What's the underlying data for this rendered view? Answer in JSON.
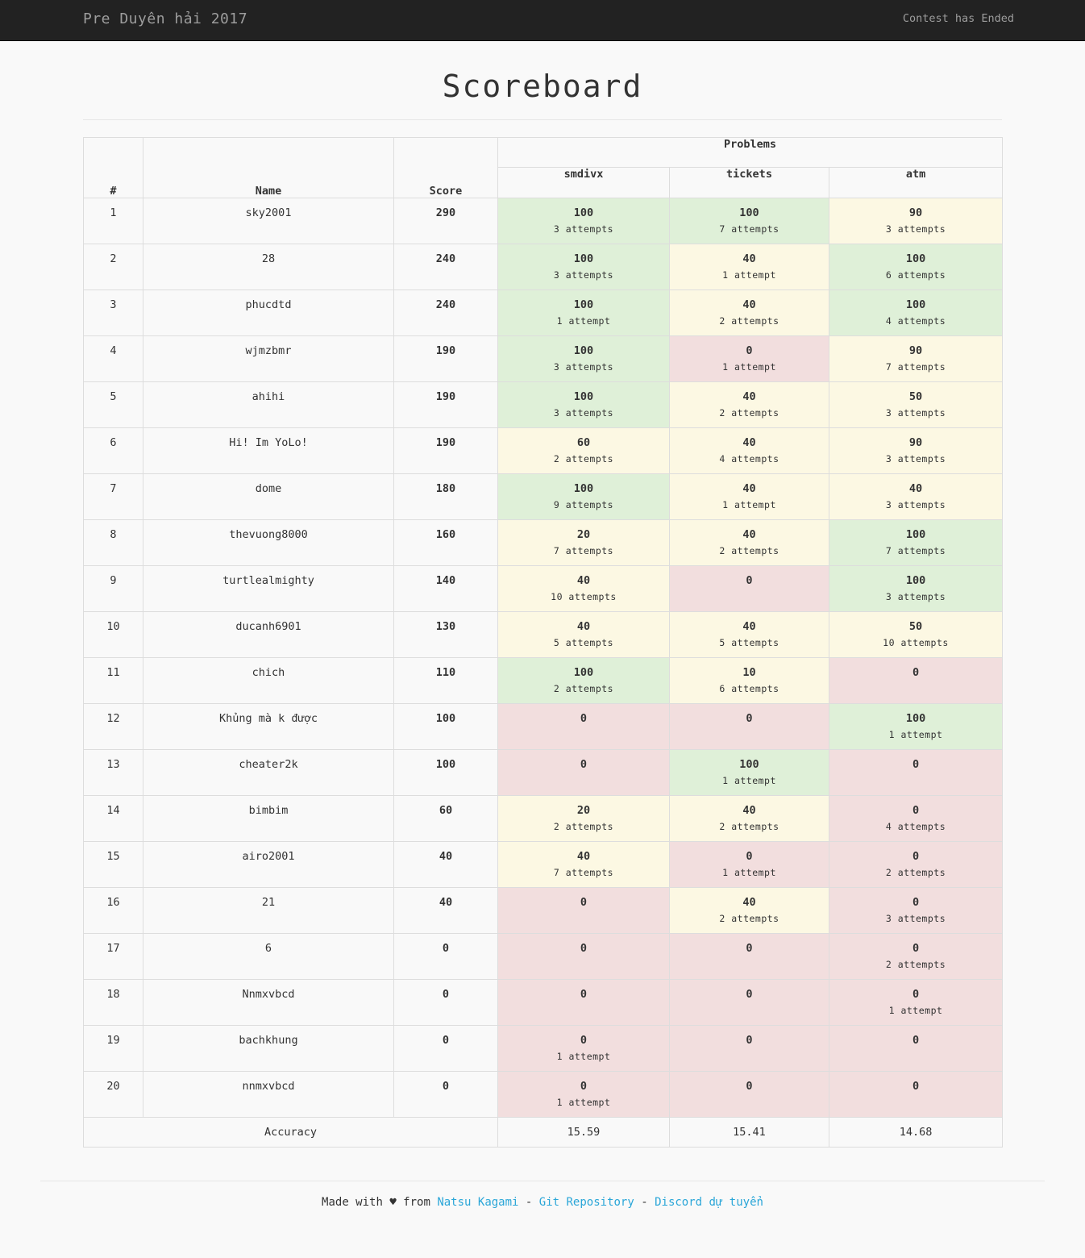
{
  "nav": {
    "brand": "Pre Duyên hải 2017",
    "status": "Contest has Ended"
  },
  "page_title": "Scoreboard",
  "table": {
    "headers": {
      "rank": "#",
      "name": "Name",
      "score": "Score",
      "problems": "Problems",
      "problem_names": [
        "smdivx",
        "tickets",
        "atm"
      ]
    },
    "rows": [
      {
        "rank": "1",
        "name": "sky2001",
        "score": "290",
        "cells": [
          {
            "score": "100",
            "attempts": "3 attempts",
            "status": "full"
          },
          {
            "score": "100",
            "attempts": "7 attempts",
            "status": "full"
          },
          {
            "score": "90",
            "attempts": "3 attempts",
            "status": "partial"
          }
        ]
      },
      {
        "rank": "2",
        "name": "28",
        "score": "240",
        "cells": [
          {
            "score": "100",
            "attempts": "3 attempts",
            "status": "full"
          },
          {
            "score": "40",
            "attempts": "1 attempt",
            "status": "partial"
          },
          {
            "score": "100",
            "attempts": "6 attempts",
            "status": "full"
          }
        ]
      },
      {
        "rank": "3",
        "name": "phucdtd",
        "score": "240",
        "cells": [
          {
            "score": "100",
            "attempts": "1 attempt",
            "status": "full"
          },
          {
            "score": "40",
            "attempts": "2 attempts",
            "status": "partial"
          },
          {
            "score": "100",
            "attempts": "4 attempts",
            "status": "full"
          }
        ]
      },
      {
        "rank": "4",
        "name": "wjmzbmr",
        "score": "190",
        "cells": [
          {
            "score": "100",
            "attempts": "3 attempts",
            "status": "full"
          },
          {
            "score": "0",
            "attempts": "1 attempt",
            "status": "zero"
          },
          {
            "score": "90",
            "attempts": "7 attempts",
            "status": "partial"
          }
        ]
      },
      {
        "rank": "5",
        "name": "ahihi",
        "score": "190",
        "cells": [
          {
            "score": "100",
            "attempts": "3 attempts",
            "status": "full"
          },
          {
            "score": "40",
            "attempts": "2 attempts",
            "status": "partial"
          },
          {
            "score": "50",
            "attempts": "3 attempts",
            "status": "partial"
          }
        ]
      },
      {
        "rank": "6",
        "name": "Hi! Im YoLo!",
        "score": "190",
        "cells": [
          {
            "score": "60",
            "attempts": "2 attempts",
            "status": "partial"
          },
          {
            "score": "40",
            "attempts": "4 attempts",
            "status": "partial"
          },
          {
            "score": "90",
            "attempts": "3 attempts",
            "status": "partial"
          }
        ]
      },
      {
        "rank": "7",
        "name": "dome",
        "score": "180",
        "cells": [
          {
            "score": "100",
            "attempts": "9 attempts",
            "status": "full"
          },
          {
            "score": "40",
            "attempts": "1 attempt",
            "status": "partial"
          },
          {
            "score": "40",
            "attempts": "3 attempts",
            "status": "partial"
          }
        ]
      },
      {
        "rank": "8",
        "name": "thevuong8000",
        "score": "160",
        "cells": [
          {
            "score": "20",
            "attempts": "7 attempts",
            "status": "partial"
          },
          {
            "score": "40",
            "attempts": "2 attempts",
            "status": "partial"
          },
          {
            "score": "100",
            "attempts": "7 attempts",
            "status": "full"
          }
        ]
      },
      {
        "rank": "9",
        "name": "turtlealmighty",
        "score": "140",
        "cells": [
          {
            "score": "40",
            "attempts": "10 attempts",
            "status": "partial"
          },
          {
            "score": "0",
            "attempts": "",
            "status": "zero"
          },
          {
            "score": "100",
            "attempts": "3 attempts",
            "status": "full"
          }
        ]
      },
      {
        "rank": "10",
        "name": "ducanh6901",
        "score": "130",
        "cells": [
          {
            "score": "40",
            "attempts": "5 attempts",
            "status": "partial"
          },
          {
            "score": "40",
            "attempts": "5 attempts",
            "status": "partial"
          },
          {
            "score": "50",
            "attempts": "10 attempts",
            "status": "partial"
          }
        ]
      },
      {
        "rank": "11",
        "name": "chich",
        "score": "110",
        "cells": [
          {
            "score": "100",
            "attempts": "2 attempts",
            "status": "full"
          },
          {
            "score": "10",
            "attempts": "6 attempts",
            "status": "partial"
          },
          {
            "score": "0",
            "attempts": "",
            "status": "zero"
          }
        ]
      },
      {
        "rank": "12",
        "name": "Khủng mà k được",
        "score": "100",
        "cells": [
          {
            "score": "0",
            "attempts": "",
            "status": "zero"
          },
          {
            "score": "0",
            "attempts": "",
            "status": "zero"
          },
          {
            "score": "100",
            "attempts": "1 attempt",
            "status": "full"
          }
        ]
      },
      {
        "rank": "13",
        "name": "cheater2k",
        "score": "100",
        "cells": [
          {
            "score": "0",
            "attempts": "",
            "status": "zero"
          },
          {
            "score": "100",
            "attempts": "1 attempt",
            "status": "full"
          },
          {
            "score": "0",
            "attempts": "",
            "status": "zero"
          }
        ]
      },
      {
        "rank": "14",
        "name": "bimbim",
        "score": "60",
        "cells": [
          {
            "score": "20",
            "attempts": "2 attempts",
            "status": "partial"
          },
          {
            "score": "40",
            "attempts": "2 attempts",
            "status": "partial"
          },
          {
            "score": "0",
            "attempts": "4 attempts",
            "status": "zero"
          }
        ]
      },
      {
        "rank": "15",
        "name": "airo2001",
        "score": "40",
        "cells": [
          {
            "score": "40",
            "attempts": "7 attempts",
            "status": "partial"
          },
          {
            "score": "0",
            "attempts": "1 attempt",
            "status": "zero"
          },
          {
            "score": "0",
            "attempts": "2 attempts",
            "status": "zero"
          }
        ]
      },
      {
        "rank": "16",
        "name": "21",
        "score": "40",
        "cells": [
          {
            "score": "0",
            "attempts": "",
            "status": "zero"
          },
          {
            "score": "40",
            "attempts": "2 attempts",
            "status": "partial"
          },
          {
            "score": "0",
            "attempts": "3 attempts",
            "status": "zero"
          }
        ]
      },
      {
        "rank": "17",
        "name": "6",
        "score": "0",
        "cells": [
          {
            "score": "0",
            "attempts": "",
            "status": "zero"
          },
          {
            "score": "0",
            "attempts": "",
            "status": "zero"
          },
          {
            "score": "0",
            "attempts": "2 attempts",
            "status": "zero"
          }
        ]
      },
      {
        "rank": "18",
        "name": "Nnmxvbcd",
        "score": "0",
        "cells": [
          {
            "score": "0",
            "attempts": "",
            "status": "zero"
          },
          {
            "score": "0",
            "attempts": "",
            "status": "zero"
          },
          {
            "score": "0",
            "attempts": "1 attempt",
            "status": "zero"
          }
        ]
      },
      {
        "rank": "19",
        "name": "bachkhung",
        "score": "0",
        "cells": [
          {
            "score": "0",
            "attempts": "1 attempt",
            "status": "zero"
          },
          {
            "score": "0",
            "attempts": "",
            "status": "zero"
          },
          {
            "score": "0",
            "attempts": "",
            "status": "zero"
          }
        ]
      },
      {
        "rank": "20",
        "name": "nnmxvbcd",
        "score": "0",
        "cells": [
          {
            "score": "0",
            "attempts": "1 attempt",
            "status": "zero"
          },
          {
            "score": "0",
            "attempts": "",
            "status": "zero"
          },
          {
            "score": "0",
            "attempts": "",
            "status": "zero"
          }
        ]
      }
    ],
    "accuracy": {
      "label": "Accuracy",
      "values": [
        "15.59",
        "15.41",
        "14.68"
      ]
    }
  },
  "colors": {
    "full": "#dff0d8",
    "partial": "#fcf8e3",
    "zero": "#f2dede",
    "link": "#2aa6d8",
    "navbar": "#222222"
  },
  "footer": {
    "prefix": "Made with ♥ from ",
    "author_link": "Natsu Kagami",
    "sep1": " - ",
    "repo_link": "Git Repository",
    "sep2": " - ",
    "discord_link": "Discord dự tuyển"
  }
}
